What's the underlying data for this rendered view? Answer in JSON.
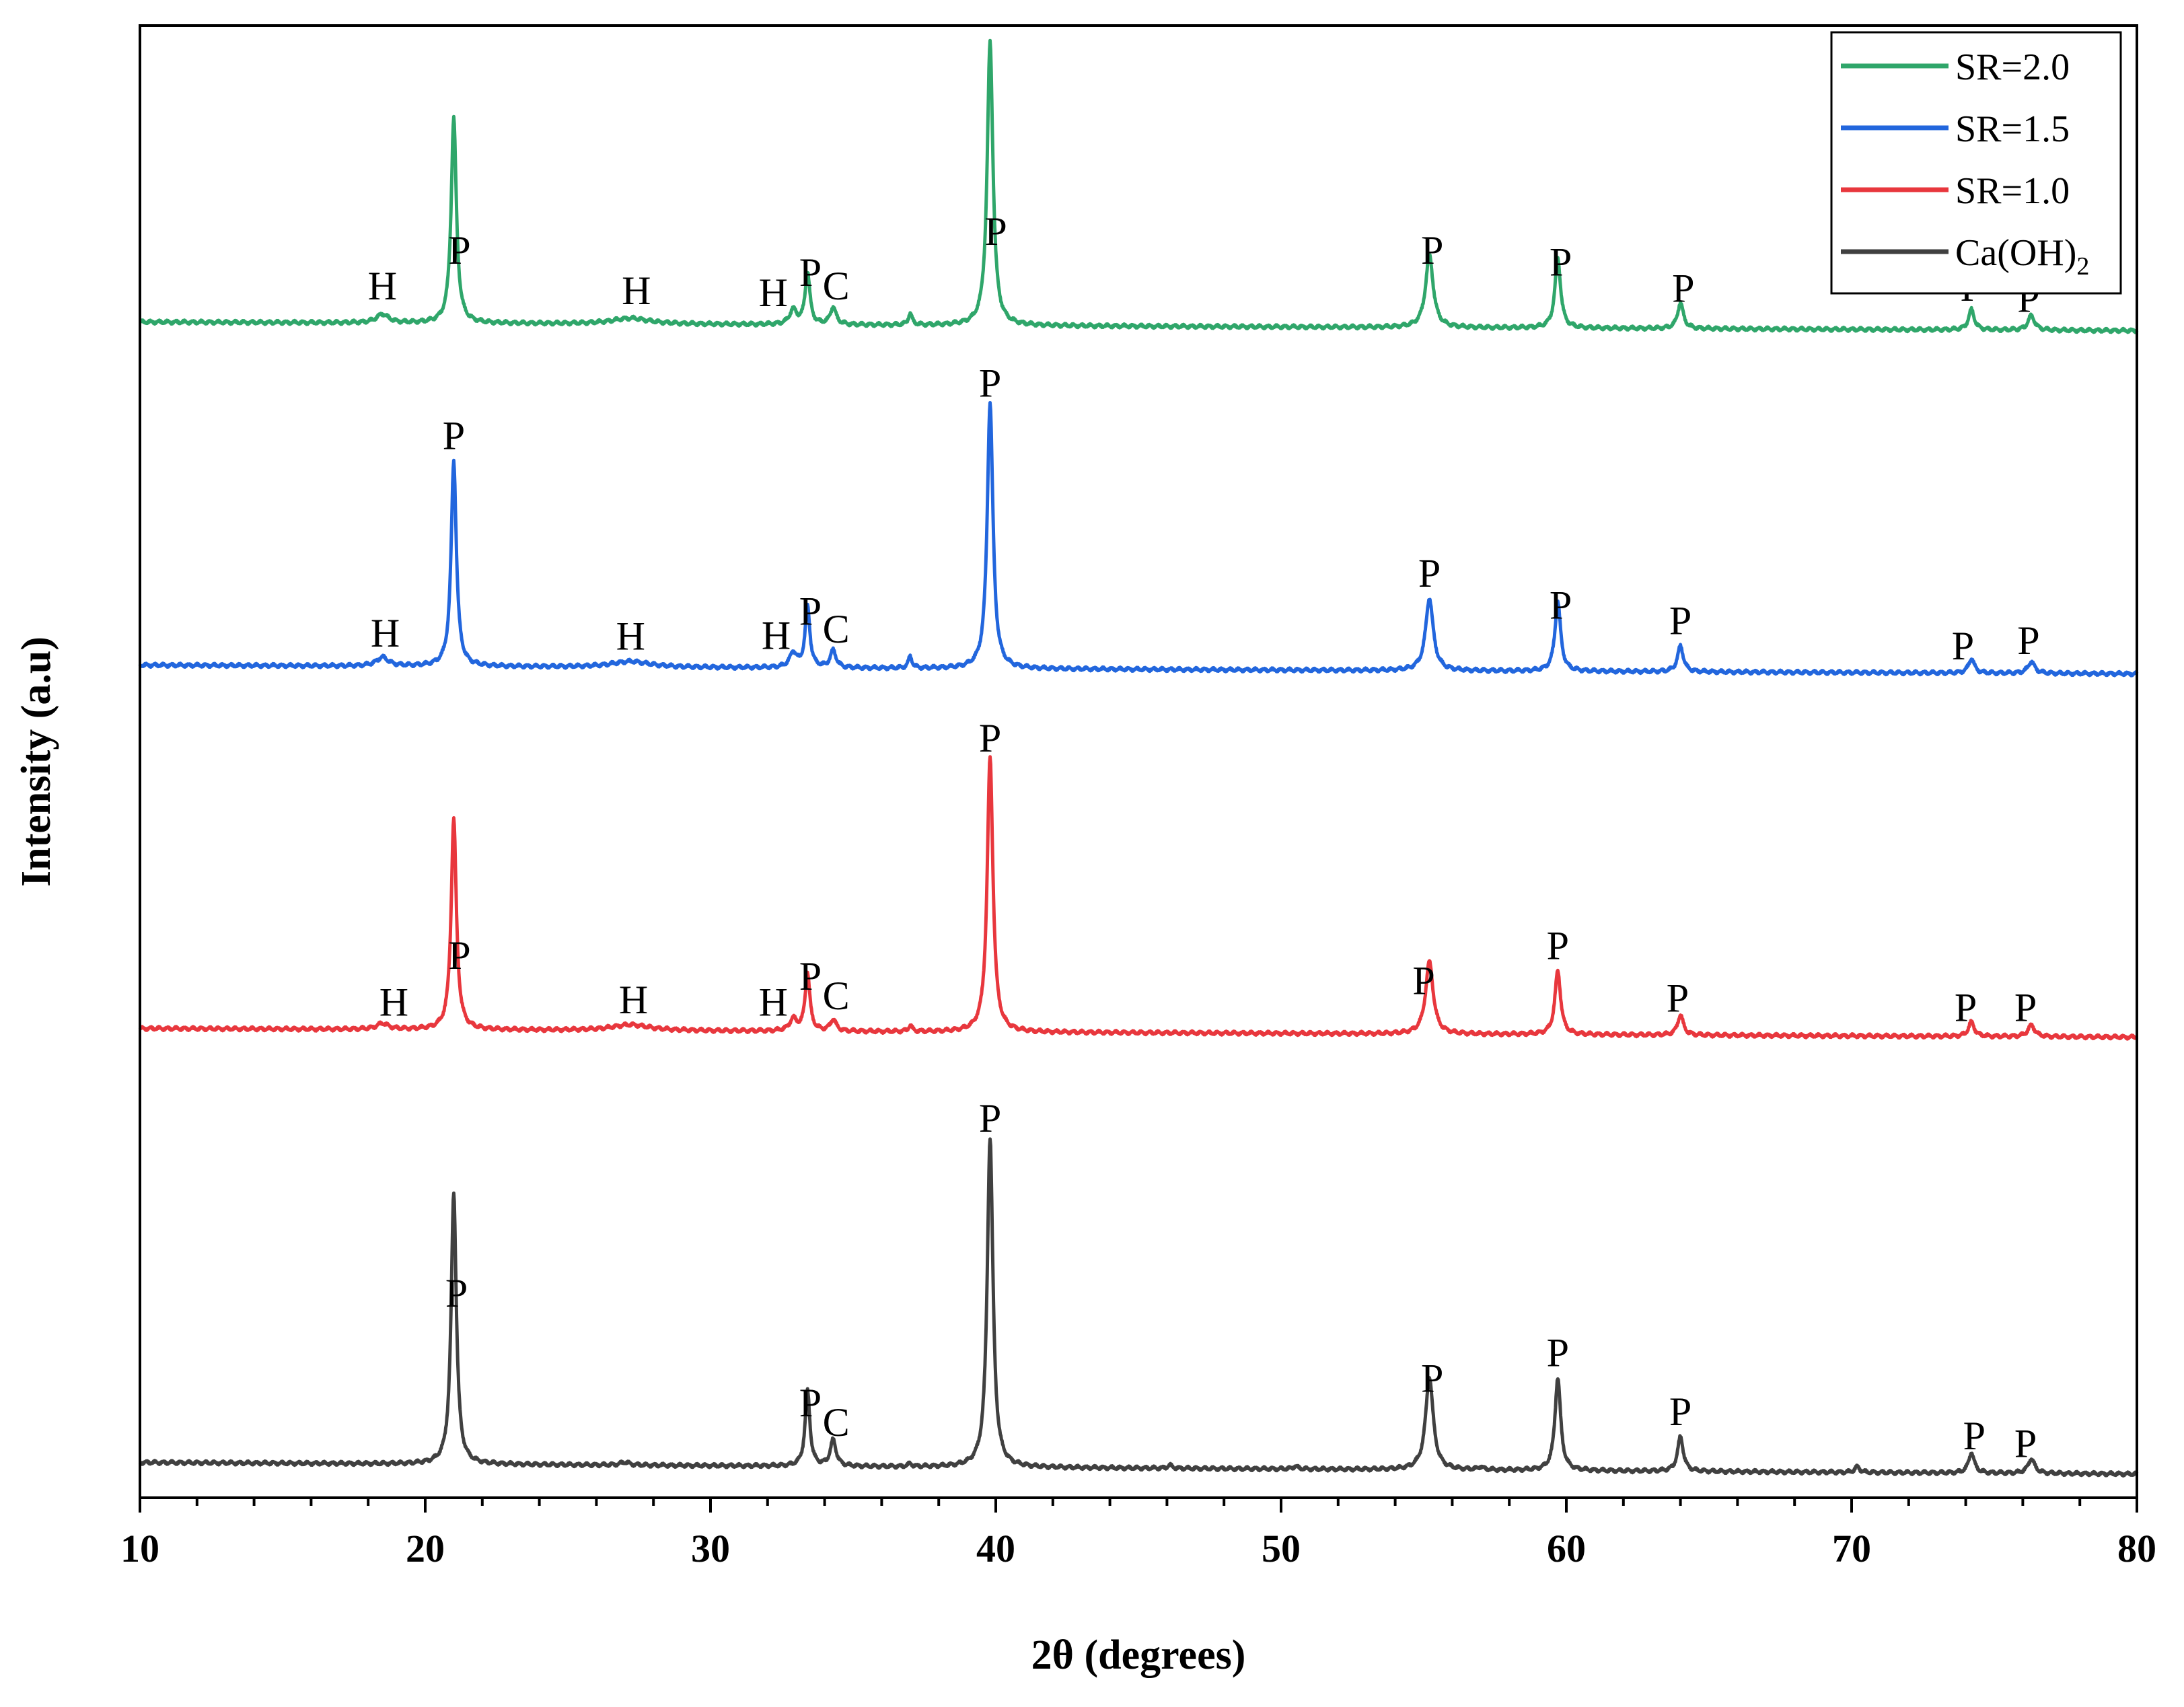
{
  "chart_data": {
    "type": "line",
    "xlabel": "2θ (degrees)",
    "ylabel": "Intensity (a.u)",
    "xlim": [
      10,
      80
    ],
    "x_ticks": [
      10,
      20,
      30,
      40,
      50,
      60,
      70,
      80
    ],
    "x_tick_labels": [
      "10",
      "20",
      "30",
      "40",
      "50",
      "60",
      "70",
      "80"
    ],
    "y_ticks_shown": false,
    "grid": false,
    "legend_position": "top-right",
    "legend": [
      {
        "label": "SR=2.0",
        "color": "#2fa66a"
      },
      {
        "label": "SR=1.5",
        "color": "#2266dd"
      },
      {
        "label": "SR=1.0",
        "color": "#e8373d"
      },
      {
        "label": "Ca(OH)",
        "sub": "2",
        "color": "#404040"
      }
    ],
    "series": [
      {
        "name": "SR=2.0",
        "color": "#2fa66a",
        "baseline_start": 0.05,
        "baseline_end": 0.02,
        "peaks": [
          {
            "x": 18.5,
            "h": 0.03,
            "w": 0.25
          },
          {
            "x": 21.0,
            "h": 0.71,
            "w": 0.11
          },
          {
            "x": 27.2,
            "h": 0.02,
            "w": 0.8
          },
          {
            "x": 32.9,
            "h": 0.05,
            "w": 0.15
          },
          {
            "x": 33.4,
            "h": 0.18,
            "w": 0.1
          },
          {
            "x": 34.3,
            "h": 0.06,
            "w": 0.12
          },
          {
            "x": 37.0,
            "h": 0.04,
            "w": 0.08
          },
          {
            "x": 39.8,
            "h": 0.98,
            "w": 0.12
          },
          {
            "x": 55.2,
            "h": 0.25,
            "w": 0.16
          },
          {
            "x": 59.7,
            "h": 0.24,
            "w": 0.12
          },
          {
            "x": 64.0,
            "h": 0.09,
            "w": 0.12
          },
          {
            "x": 74.2,
            "h": 0.07,
            "w": 0.12
          },
          {
            "x": 76.3,
            "h": 0.05,
            "w": 0.14
          }
        ]
      },
      {
        "name": "SR=1.5",
        "color": "#2266dd",
        "baseline_start": 0.05,
        "baseline_end": 0.02,
        "peaks": [
          {
            "x": 18.5,
            "h": 0.03,
            "w": 0.25
          },
          {
            "x": 21.0,
            "h": 0.71,
            "w": 0.11
          },
          {
            "x": 27.2,
            "h": 0.02,
            "w": 0.8
          },
          {
            "x": 32.9,
            "h": 0.05,
            "w": 0.15
          },
          {
            "x": 33.4,
            "h": 0.21,
            "w": 0.1
          },
          {
            "x": 34.3,
            "h": 0.06,
            "w": 0.12
          },
          {
            "x": 37.0,
            "h": 0.04,
            "w": 0.08
          },
          {
            "x": 39.8,
            "h": 0.92,
            "w": 0.12
          },
          {
            "x": 55.2,
            "h": 0.25,
            "w": 0.16
          },
          {
            "x": 59.7,
            "h": 0.24,
            "w": 0.12
          },
          {
            "x": 64.0,
            "h": 0.09,
            "w": 0.12
          },
          {
            "x": 74.2,
            "h": 0.05,
            "w": 0.12
          },
          {
            "x": 76.3,
            "h": 0.04,
            "w": 0.14
          }
        ]
      },
      {
        "name": "SR=1.0",
        "color": "#e8373d",
        "baseline_start": 0.05,
        "baseline_end": 0.02,
        "peaks": [
          {
            "x": 18.5,
            "h": 0.02,
            "w": 0.25
          },
          {
            "x": 21.0,
            "h": 0.73,
            "w": 0.11
          },
          {
            "x": 27.2,
            "h": 0.02,
            "w": 0.8
          },
          {
            "x": 32.9,
            "h": 0.04,
            "w": 0.15
          },
          {
            "x": 33.4,
            "h": 0.2,
            "w": 0.1
          },
          {
            "x": 34.3,
            "h": 0.04,
            "w": 0.12
          },
          {
            "x": 37.0,
            "h": 0.02,
            "w": 0.08
          },
          {
            "x": 39.8,
            "h": 0.95,
            "w": 0.12
          },
          {
            "x": 55.2,
            "h": 0.25,
            "w": 0.16
          },
          {
            "x": 59.7,
            "h": 0.22,
            "w": 0.12
          },
          {
            "x": 64.0,
            "h": 0.07,
            "w": 0.12
          },
          {
            "x": 74.2,
            "h": 0.05,
            "w": 0.12
          },
          {
            "x": 76.3,
            "h": 0.04,
            "w": 0.14
          }
        ]
      },
      {
        "name": "Ca(OH)2",
        "color": "#404040",
        "baseline_start": 0.05,
        "baseline_end": 0.01,
        "peaks": [
          {
            "x": 21.0,
            "h": 0.94,
            "w": 0.11
          },
          {
            "x": 27.0,
            "h": 0.01,
            "w": 0.2
          },
          {
            "x": 33.4,
            "h": 0.26,
            "w": 0.1
          },
          {
            "x": 34.3,
            "h": 0.09,
            "w": 0.12
          },
          {
            "x": 37.0,
            "h": 0.01,
            "w": 0.08
          },
          {
            "x": 39.8,
            "h": 1.14,
            "w": 0.12
          },
          {
            "x": 46.1,
            "h": 0.01,
            "w": 0.1
          },
          {
            "x": 50.5,
            "h": 0.01,
            "w": 0.1
          },
          {
            "x": 55.2,
            "h": 0.32,
            "w": 0.16
          },
          {
            "x": 57.0,
            "h": 0.01,
            "w": 0.1
          },
          {
            "x": 59.7,
            "h": 0.32,
            "w": 0.12
          },
          {
            "x": 64.0,
            "h": 0.12,
            "w": 0.12
          },
          {
            "x": 70.2,
            "h": 0.02,
            "w": 0.1
          },
          {
            "x": 74.2,
            "h": 0.07,
            "w": 0.12
          },
          {
            "x": 76.3,
            "h": 0.05,
            "w": 0.14
          }
        ]
      }
    ],
    "annotations": [
      {
        "series": 0,
        "text": "H",
        "x": 18.5,
        "lift": 0.05
      },
      {
        "series": 0,
        "text": "P",
        "x": 21.2,
        "lift": 0.04
      },
      {
        "series": 0,
        "text": "H",
        "x": 27.4,
        "lift": 0.05
      },
      {
        "series": 0,
        "text": "H",
        "x": 32.2,
        "lift": 0.06
      },
      {
        "series": 0,
        "text": "P",
        "x": 33.5,
        "lift": 0.04
      },
      {
        "series": 0,
        "text": "C",
        "x": 34.4,
        "lift": 0.05
      },
      {
        "series": 0,
        "text": "P",
        "x": 40.0,
        "lift": 0.02
      },
      {
        "series": 0,
        "text": "P",
        "x": 55.3,
        "lift": 0.04
      },
      {
        "series": 0,
        "text": "P",
        "x": 59.8,
        "lift": 0.04
      },
      {
        "series": 0,
        "text": "P",
        "x": 64.1,
        "lift": 0.04
      },
      {
        "series": 0,
        "text": "P",
        "x": 74.2,
        "lift": 0.03
      },
      {
        "series": 0,
        "text": "P",
        "x": 76.2,
        "lift": 0.03
      },
      {
        "series": 1,
        "text": "H",
        "x": 18.6,
        "lift": 0.04
      },
      {
        "series": 1,
        "text": "P",
        "x": 21.0,
        "lift": 0.04
      },
      {
        "series": 1,
        "text": "H",
        "x": 27.2,
        "lift": 0.04
      },
      {
        "series": 1,
        "text": "H",
        "x": 32.3,
        "lift": 0.06
      },
      {
        "series": 1,
        "text": "P",
        "x": 33.5,
        "lift": 0.04
      },
      {
        "series": 1,
        "text": "C",
        "x": 34.4,
        "lift": 0.05
      },
      {
        "series": 1,
        "text": "P",
        "x": 39.8,
        "lift": 0.02
      },
      {
        "series": 1,
        "text": "P",
        "x": 55.2,
        "lift": 0.04
      },
      {
        "series": 1,
        "text": "P",
        "x": 59.8,
        "lift": 0.04
      },
      {
        "series": 1,
        "text": "P",
        "x": 64.0,
        "lift": 0.04
      },
      {
        "series": 1,
        "text": "P",
        "x": 73.9,
        "lift": 0.04
      },
      {
        "series": 1,
        "text": "P",
        "x": 76.2,
        "lift": 0.04
      },
      {
        "series": 2,
        "text": "H",
        "x": 18.9,
        "lift": 0.04
      },
      {
        "series": 2,
        "text": "P",
        "x": 21.2,
        "lift": 0.04
      },
      {
        "series": 2,
        "text": "H",
        "x": 27.3,
        "lift": 0.04
      },
      {
        "series": 2,
        "text": "H",
        "x": 32.2,
        "lift": 0.05
      },
      {
        "series": 2,
        "text": "P",
        "x": 33.5,
        "lift": 0.04
      },
      {
        "series": 2,
        "text": "C",
        "x": 34.4,
        "lift": 0.05
      },
      {
        "series": 2,
        "text": "P",
        "x": 39.8,
        "lift": 0.02
      },
      {
        "series": 2,
        "text": "P",
        "x": 55.0,
        "lift": 0.04
      },
      {
        "series": 2,
        "text": "P",
        "x": 59.7,
        "lift": 0.04
      },
      {
        "series": 2,
        "text": "P",
        "x": 63.9,
        "lift": 0.04
      },
      {
        "series": 2,
        "text": "P",
        "x": 74.0,
        "lift": 0.04
      },
      {
        "series": 2,
        "text": "P",
        "x": 76.1,
        "lift": 0.04
      },
      {
        "series": 3,
        "text": "P",
        "x": 21.1,
        "lift": 0.03
      },
      {
        "series": 3,
        "text": "P",
        "x": 33.5,
        "lift": 0.04
      },
      {
        "series": 3,
        "text": "C",
        "x": 34.4,
        "lift": 0.05
      },
      {
        "series": 3,
        "text": "P",
        "x": 39.8,
        "lift": 0.02
      },
      {
        "series": 3,
        "text": "P",
        "x": 55.3,
        "lift": 0.04
      },
      {
        "series": 3,
        "text": "P",
        "x": 59.7,
        "lift": 0.04
      },
      {
        "series": 3,
        "text": "P",
        "x": 64.0,
        "lift": 0.04
      },
      {
        "series": 3,
        "text": "P",
        "x": 74.3,
        "lift": 0.04
      },
      {
        "series": 3,
        "text": "P",
        "x": 76.1,
        "lift": 0.04
      }
    ]
  }
}
